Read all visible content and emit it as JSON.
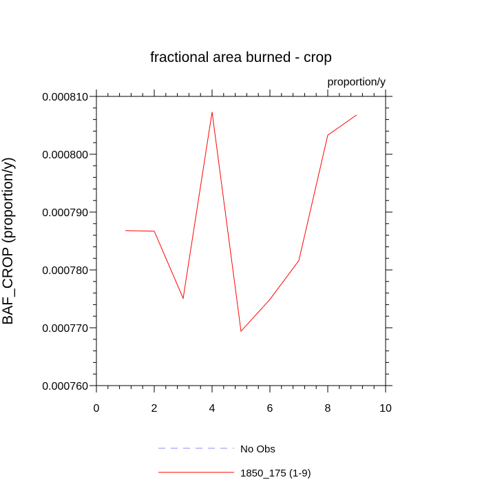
{
  "chart_data": {
    "type": "line",
    "title": "fractional area burned - crop",
    "units": "proportion/y",
    "xlabel": "",
    "ylabel": "BAF_CROP  (proportion/y)",
    "xlim": [
      0,
      10
    ],
    "ylim": [
      0.00076,
      0.00081
    ],
    "x_ticks": [
      0,
      2,
      4,
      6,
      8,
      10
    ],
    "x_tick_labels": [
      "0",
      "2",
      "4",
      "6",
      "8",
      "10"
    ],
    "y_ticks": [
      0.00076,
      0.00077,
      0.00078,
      0.00079,
      0.0008,
      0.00081
    ],
    "y_tick_labels": [
      "0.000760",
      "0.000770",
      "0.000780",
      "0.000790",
      "0.000800",
      "0.000810"
    ],
    "grid": false,
    "legend_position": "bottom",
    "series": [
      {
        "name": "1850_175 (1-9)",
        "color": "#ff0000",
        "style": "solid",
        "x": [
          1,
          2,
          3,
          4,
          5,
          6,
          7,
          8,
          9
        ],
        "values": [
          0.0007868,
          0.0007867,
          0.0007751,
          0.0008073,
          0.0007694,
          0.0007749,
          0.0007816,
          0.0008033,
          0.0008068
        ]
      }
    ],
    "legend": [
      {
        "label": "No Obs",
        "color": "#8888ff",
        "style": "dashed"
      },
      {
        "label": "1850_175 (1-9)",
        "color": "#ff0000",
        "style": "solid"
      }
    ]
  }
}
